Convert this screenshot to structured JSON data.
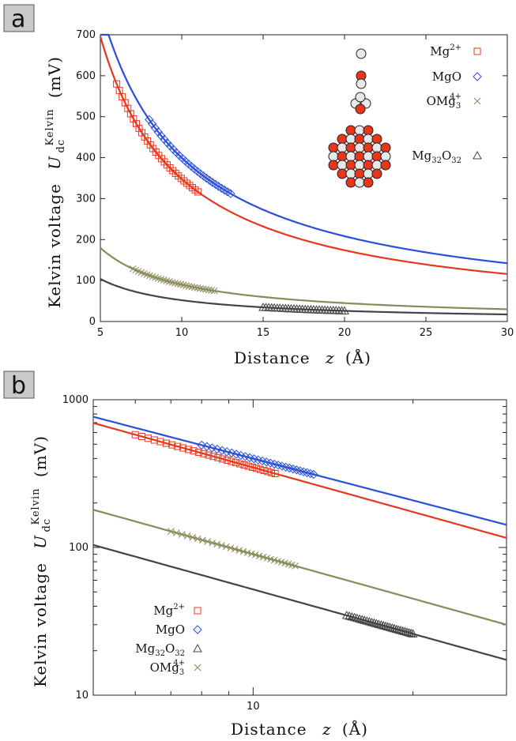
{
  "chart_data": [
    {
      "panel": "a",
      "type": "line",
      "xlabel": "Distance",
      "xvar": "z",
      "xunit": "(Å)",
      "ylabel_prefix": "Kelvin voltage",
      "ylabel_sym": "U",
      "ylabel_sub": "dc",
      "ylabel_sup": "Kelvin",
      "ylabel_unit": "(mV)",
      "xlim": [
        5,
        30
      ],
      "ylim": [
        0,
        700
      ],
      "yscale": "linear",
      "xticks": [
        "5",
        "10",
        "15",
        "20",
        "25",
        "30"
      ],
      "yticks": [
        "0",
        "100",
        "200",
        "300",
        "400",
        "500",
        "600",
        "700"
      ],
      "grid": false,
      "legend_position": "top-right",
      "series": [
        {
          "name": "Mg",
          "sup": "2+",
          "sub": "",
          "marker": "square",
          "color": "#e8361c",
          "curve": {
            "a": 3480,
            "b": -1.0
          },
          "points_x": [
            6,
            11
          ],
          "points_count": 30
        },
        {
          "name": "MgO",
          "sup": "",
          "sub": "",
          "marker": "diamond",
          "color": "#2a4fd8",
          "curve": {
            "a": 3480,
            "b": -0.94
          },
          "points_x": [
            8,
            13
          ],
          "points_count": 28
        },
        {
          "name": "OMg",
          "sup": "4+",
          "sub": "3",
          "marker": "x",
          "color": "#8a8a5a",
          "curve": {
            "a": 900,
            "b": -1.0
          },
          "points_x": [
            7,
            12
          ],
          "points_count": 30
        },
        {
          "name": "Mg",
          "sup": "",
          "sub": "32",
          "name2": "O",
          "sub2": "32",
          "marker": "triangle",
          "color": "#444444",
          "curve": {
            "a": 520,
            "b": -1.0
          },
          "points_x": [
            15,
            20
          ],
          "points_count": 30
        }
      ]
    },
    {
      "panel": "b",
      "type": "line",
      "xlabel": "Distance",
      "xvar": "z",
      "xunit": "(Å)",
      "ylabel_prefix": "Kelvin voltage",
      "ylabel_sym": "U",
      "ylabel_sub": "dc",
      "ylabel_sup": "Kelvin",
      "ylabel_unit": "(mV)",
      "xlim": [
        5,
        30
      ],
      "ylim": [
        10,
        1000
      ],
      "xscale": "log",
      "yscale": "log",
      "xticks": [
        "10"
      ],
      "yticks": [
        "10",
        "100",
        "1000"
      ],
      "grid": false,
      "legend_position": "bottom-left",
      "legend_order": [
        0,
        1,
        3,
        2
      ]
    }
  ],
  "colors": {
    "blue": "#2a4fd8",
    "red": "#e8361c",
    "olive": "#8a8a5a",
    "dark": "#444444"
  }
}
